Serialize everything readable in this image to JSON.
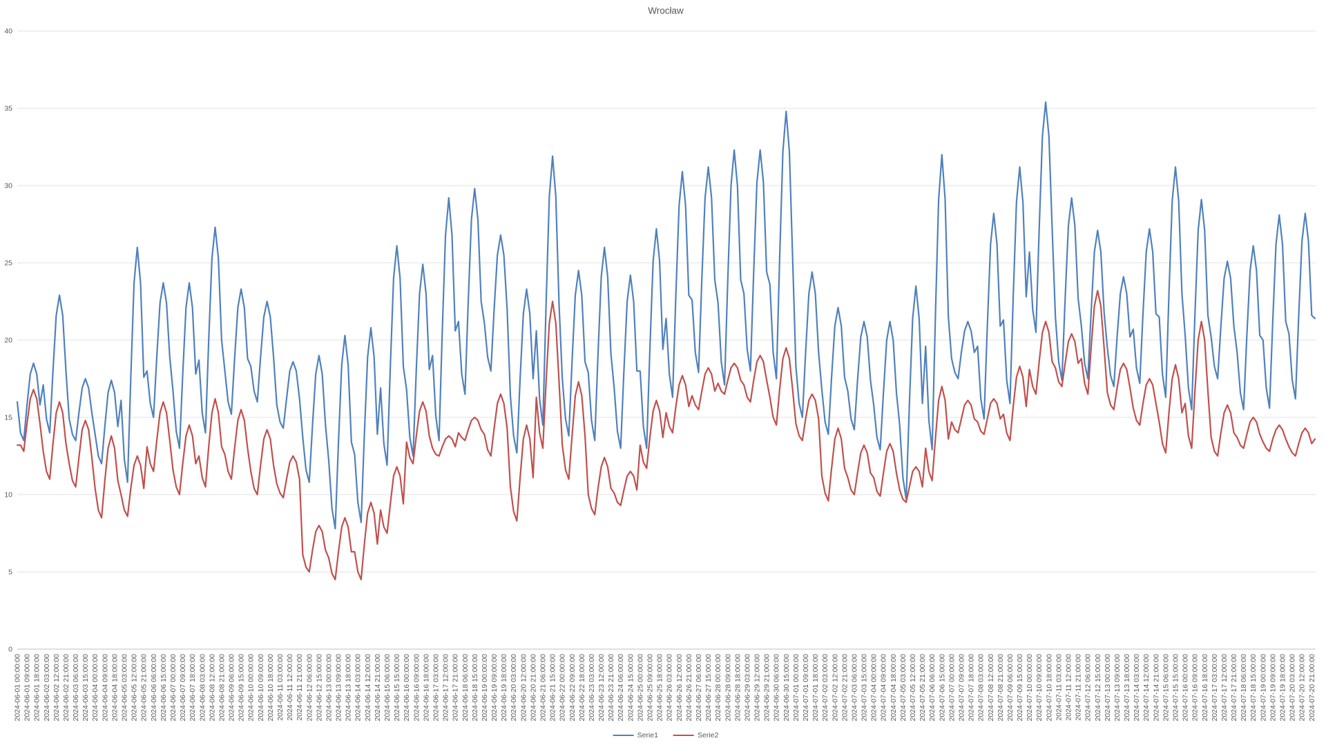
{
  "title": "Wrocław",
  "legend": {
    "items": [
      {
        "label": "Serie1",
        "color": "#4F81BD"
      },
      {
        "label": "Serie2",
        "color": "#C0504D"
      }
    ]
  },
  "axes": {
    "y_tick_labels": [
      "0",
      "5",
      "10",
      "15",
      "20",
      "25",
      "30",
      "35",
      "40"
    ],
    "x_first_label": "2024-06-01 00:00:00",
    "x_last_label": "2024-07-20 21:00:00",
    "x_tick_step_hours": 9
  },
  "colors": {
    "background": "#FFFFFF",
    "gridline": "#E2E2E2",
    "axis_line": "#BFBFBF",
    "label_text": "#595959",
    "serie1": "#4F81BD",
    "serie2": "#C0504D"
  },
  "chart_data": {
    "type": "line",
    "title": "Wrocław",
    "xlabel": "",
    "ylabel": "",
    "ylim": [
      0,
      40
    ],
    "y_ticks": [
      0,
      5,
      10,
      15,
      20,
      25,
      30,
      35,
      40
    ],
    "grid": true,
    "legend_position": "bottom",
    "x_start": "2024-06-01 00:00:00",
    "x_end": "2024-07-21 00:00:00",
    "point_step_hours": 3,
    "tick_step_hours": 9,
    "series": [
      {
        "name": "Serie1",
        "color": "#4F81BD",
        "values": [
          16.0,
          14.0,
          13.5,
          15.8,
          17.8,
          18.5,
          17.8,
          15.8,
          17.1,
          14.9,
          14.0,
          18.0,
          21.6,
          22.9,
          21.6,
          18.0,
          14.9,
          13.9,
          13.5,
          15.3,
          16.9,
          17.5,
          16.9,
          15.3,
          13.9,
          12.5,
          12.0,
          14.4,
          16.6,
          17.4,
          16.6,
          14.4,
          16.1,
          12.3,
          10.8,
          17.6,
          23.7,
          26.0,
          23.7,
          17.6,
          18.0,
          15.9,
          15.0,
          18.9,
          22.4,
          23.7,
          22.4,
          18.9,
          16.7,
          14.1,
          13.0,
          17.8,
          22.1,
          23.7,
          22.1,
          17.8,
          18.7,
          15.3,
          14.0,
          20.0,
          25.3,
          27.3,
          25.3,
          20.0,
          18.0,
          16.0,
          15.2,
          18.8,
          22.1,
          23.3,
          22.1,
          18.8,
          18.3,
          16.7,
          16.0,
          18.9,
          21.5,
          22.5,
          21.5,
          18.9,
          15.8,
          14.7,
          14.3,
          16.2,
          18.0,
          18.6,
          18.0,
          16.2,
          13.7,
          11.6,
          10.8,
          14.5,
          17.8,
          19.0,
          17.8,
          14.5,
          12.2,
          9.1,
          7.8,
          13.4,
          18.4,
          20.3,
          18.4,
          13.4,
          12.6,
          9.5,
          8.2,
          13.9,
          18.9,
          20.8,
          18.9,
          13.9,
          16.9,
          13.3,
          11.9,
          18.3,
          24.0,
          26.1,
          24.0,
          18.3,
          16.8,
          13.7,
          12.5,
          18.1,
          23.0,
          24.9,
          23.0,
          18.1,
          19.0,
          15.1,
          13.5,
          20.6,
          26.8,
          29.2,
          26.8,
          20.6,
          21.2,
          17.8,
          16.5,
          22.5,
          27.8,
          29.8,
          27.8,
          22.5,
          21.1,
          18.9,
          18.0,
          22.0,
          25.5,
          26.8,
          25.5,
          22.0,
          16.4,
          13.8,
          12.7,
          17.5,
          21.7,
          23.3,
          21.7,
          17.5,
          20.6,
          16.2,
          14.5,
          22.3,
          29.3,
          31.9,
          29.3,
          22.3,
          17.5,
          14.9,
          13.8,
          18.6,
          22.9,
          24.5,
          22.9,
          18.6,
          17.9,
          14.8,
          13.5,
          19.1,
          24.1,
          26.0,
          24.1,
          19.1,
          16.9,
          14.1,
          13.0,
          18.0,
          22.5,
          24.2,
          22.5,
          18.0,
          18.0,
          14.4,
          13.0,
          19.4,
          25.1,
          27.2,
          25.1,
          19.4,
          21.4,
          17.8,
          16.3,
          22.9,
          28.7,
          30.9,
          28.7,
          22.9,
          22.6,
          19.2,
          17.9,
          23.9,
          29.2,
          31.2,
          29.2,
          23.9,
          22.4,
          18.6,
          17.1,
          23.9,
          30.0,
          32.3,
          30.0,
          23.9,
          23.0,
          19.4,
          18.0,
          24.4,
          30.2,
          32.3,
          30.2,
          24.4,
          23.6,
          19.2,
          17.5,
          25.3,
          32.2,
          34.8,
          32.2,
          25.3,
          18.3,
          15.9,
          15.0,
          19.2,
          23.0,
          24.4,
          23.0,
          19.2,
          16.8,
          14.7,
          13.9,
          17.6,
          20.9,
          22.1,
          20.9,
          17.6,
          16.7,
          14.9,
          14.2,
          17.4,
          20.2,
          21.2,
          20.2,
          17.4,
          15.8,
          13.7,
          12.9,
          16.6,
          20.0,
          21.2,
          20.0,
          16.6,
          14.5,
          11.1,
          9.7,
          15.9,
          21.4,
          23.5,
          21.4,
          15.9,
          19.6,
          14.8,
          12.9,
          21.5,
          29.1,
          32.0,
          29.1,
          21.5,
          18.8,
          17.9,
          17.5,
          19.2,
          20.6,
          21.2,
          20.6,
          19.2,
          19.6,
          16.2,
          14.9,
          20.9,
          26.2,
          28.2,
          26.2,
          20.9,
          21.3,
          17.4,
          15.9,
          22.8,
          28.9,
          31.2,
          28.9,
          22.8,
          25.7,
          22.0,
          20.5,
          27.2,
          33.2,
          35.4,
          33.2,
          27.2,
          21.5,
          18.6,
          17.4,
          22.7,
          27.4,
          29.2,
          27.4,
          22.7,
          20.9,
          18.5,
          17.5,
          21.8,
          25.7,
          27.1,
          25.7,
          21.8,
          19.5,
          17.7,
          17.0,
          20.2,
          23.0,
          24.1,
          23.0,
          20.2,
          20.7,
          18.2,
          17.2,
          21.7,
          25.7,
          27.2,
          25.7,
          21.7,
          21.5,
          17.8,
          16.3,
          23.0,
          29.0,
          31.2,
          29.0,
          23.0,
          20.3,
          16.9,
          15.5,
          21.6,
          27.1,
          29.1,
          27.1,
          21.6,
          20.2,
          18.3,
          17.5,
          20.9,
          24.0,
          25.1,
          24.0,
          20.9,
          19.2,
          16.6,
          15.5,
          20.3,
          24.5,
          26.1,
          24.5,
          20.3,
          20.0,
          16.9,
          15.6,
          21.2,
          26.2,
          28.1,
          26.2,
          21.2,
          20.4,
          17.4,
          16.2,
          21.6,
          26.4,
          28.2,
          26.4,
          21.6,
          21.4
        ]
      },
      {
        "name": "Serie2",
        "color": "#C0504D",
        "values": [
          13.2,
          13.2,
          12.8,
          14.6,
          16.2,
          16.8,
          16.2,
          14.6,
          12.8,
          11.5,
          11.0,
          13.3,
          15.3,
          16.0,
          15.3,
          13.3,
          12.0,
          10.9,
          10.5,
          12.4,
          14.2,
          14.8,
          14.2,
          12.4,
          10.4,
          9.0,
          8.5,
          10.9,
          13.0,
          13.8,
          13.0,
          10.9,
          10.0,
          9.0,
          8.6,
          10.4,
          11.9,
          12.5,
          11.9,
          10.4,
          13.1,
          12.0,
          11.5,
          13.5,
          15.3,
          16.0,
          15.3,
          13.5,
          11.6,
          10.5,
          10.0,
          12.0,
          13.8,
          14.5,
          13.8,
          12.0,
          12.5,
          11.1,
          10.5,
          13.1,
          15.3,
          16.2,
          15.3,
          13.1,
          12.6,
          11.5,
          11.0,
          13.0,
          14.8,
          15.5,
          14.8,
          13.0,
          11.5,
          10.4,
          10.0,
          11.9,
          13.6,
          14.2,
          13.6,
          11.9,
          10.7,
          10.1,
          9.8,
          11.0,
          12.1,
          12.5,
          12.1,
          11.0,
          6.1,
          5.3,
          5.0,
          6.4,
          7.6,
          8.0,
          7.6,
          6.4,
          5.9,
          4.9,
          4.5,
          6.3,
          7.9,
          8.5,
          7.9,
          6.3,
          6.3,
          5.0,
          4.5,
          6.8,
          8.8,
          9.5,
          8.8,
          6.8,
          9.0,
          7.9,
          7.5,
          9.4,
          11.2,
          11.8,
          11.2,
          9.4,
          13.4,
          12.4,
          12.0,
          13.8,
          15.4,
          16.0,
          15.4,
          13.8,
          13.0,
          12.6,
          12.5,
          13.1,
          13.6,
          13.8,
          13.6,
          13.1,
          14.0,
          13.7,
          13.5,
          14.2,
          14.8,
          15.0,
          14.8,
          14.2,
          13.9,
          12.9,
          12.5,
          14.3,
          15.9,
          16.5,
          15.9,
          14.3,
          10.5,
          8.9,
          8.3,
          11.1,
          13.6,
          14.5,
          13.6,
          11.1,
          16.3,
          14.0,
          13.0,
          17.3,
          21.1,
          22.5,
          21.1,
          17.3,
          13.2,
          11.6,
          11.0,
          13.8,
          16.4,
          17.3,
          16.4,
          13.8,
          10.0,
          9.1,
          8.7,
          10.4,
          11.8,
          12.4,
          11.8,
          10.4,
          10.1,
          9.5,
          9.3,
          10.3,
          11.2,
          11.5,
          11.2,
          10.3,
          13.2,
          12.1,
          11.7,
          13.7,
          15.4,
          16.1,
          15.4,
          13.7,
          15.3,
          14.4,
          14.0,
          15.7,
          17.1,
          17.7,
          17.1,
          15.7,
          16.4,
          15.8,
          15.5,
          16.7,
          17.8,
          18.2,
          17.8,
          16.7,
          17.2,
          16.7,
          16.5,
          17.4,
          18.2,
          18.5,
          18.2,
          17.4,
          17.1,
          16.3,
          16.0,
          17.4,
          18.6,
          19.0,
          18.6,
          17.4,
          16.3,
          15.0,
          14.5,
          16.8,
          18.8,
          19.5,
          18.8,
          16.8,
          14.6,
          13.8,
          13.5,
          14.9,
          16.1,
          16.5,
          16.1,
          14.9,
          11.2,
          10.1,
          9.6,
          11.7,
          13.6,
          14.3,
          13.6,
          11.7,
          11.1,
          10.3,
          10.0,
          11.4,
          12.7,
          13.2,
          12.7,
          11.4,
          11.1,
          10.2,
          9.9,
          11.4,
          12.8,
          13.3,
          12.8,
          11.4,
          10.3,
          9.7,
          9.5,
          10.5,
          11.5,
          11.8,
          11.5,
          10.5,
          13.0,
          11.5,
          10.9,
          13.6,
          16.1,
          17.0,
          16.1,
          13.6,
          14.7,
          14.2,
          14.0,
          14.9,
          15.8,
          16.1,
          15.8,
          14.9,
          14.7,
          14.1,
          13.9,
          14.9,
          15.9,
          16.2,
          15.9,
          14.9,
          15.2,
          14.0,
          13.5,
          15.7,
          17.6,
          18.3,
          17.6,
          15.7,
          18.1,
          17.0,
          16.5,
          18.6,
          20.5,
          21.2,
          20.5,
          18.6,
          18.2,
          17.3,
          17.0,
          18.5,
          19.9,
          20.4,
          19.9,
          18.5,
          18.8,
          17.2,
          16.5,
          19.5,
          22.2,
          23.2,
          22.2,
          19.5,
          16.6,
          15.8,
          15.5,
          16.9,
          18.1,
          18.5,
          18.1,
          16.9,
          15.6,
          14.8,
          14.5,
          15.9,
          17.1,
          17.5,
          17.1,
          15.9,
          14.7,
          13.3,
          12.7,
          15.3,
          17.5,
          18.4,
          17.5,
          15.3,
          15.9,
          13.8,
          13.0,
          16.7,
          20.0,
          21.2,
          20.0,
          16.7,
          13.7,
          12.8,
          12.5,
          14.0,
          15.3,
          15.8,
          15.3,
          14.0,
          13.7,
          13.2,
          13.0,
          13.9,
          14.7,
          15.0,
          14.7,
          13.9,
          13.4,
          13.0,
          12.8,
          13.6,
          14.2,
          14.5,
          14.2,
          13.6,
          13.1,
          12.7,
          12.5,
          13.3,
          14.0,
          14.3,
          14.0,
          13.3,
          13.6
        ]
      }
    ]
  }
}
